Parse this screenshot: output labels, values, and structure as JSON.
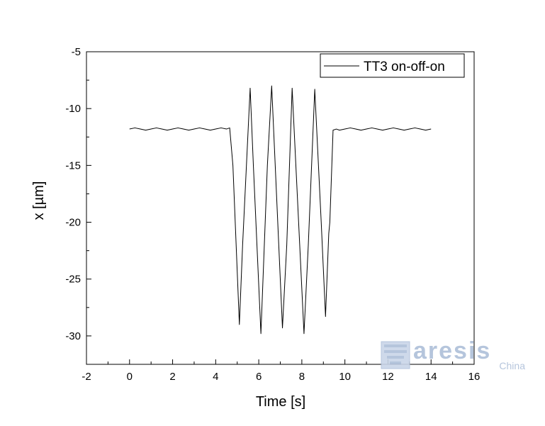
{
  "chart_data": {
    "type": "line",
    "xlabel": "Time [s]",
    "ylabel": "x [µm]",
    "xlim": [
      -2,
      16
    ],
    "ylim": [
      -32.5,
      -5
    ],
    "xticks": [
      -2,
      0,
      2,
      4,
      6,
      8,
      10,
      12,
      14,
      16
    ],
    "yticks": [
      -30,
      -25,
      -20,
      -15,
      -10,
      -5
    ],
    "xtick_labels": [
      "-2",
      "0",
      "2",
      "4",
      "6",
      "8",
      "10",
      "12",
      "14",
      "16"
    ],
    "ytick_labels": [
      "-30",
      "-25",
      "-20",
      "-15",
      "-10",
      "-5"
    ],
    "grid": false,
    "legend_position": "top-right",
    "series": [
      {
        "name": "TT3 on-off-on",
        "color": "#000000",
        "x": [
          0.0,
          0.25,
          0.5,
          0.75,
          1.0,
          1.25,
          1.5,
          1.75,
          2.0,
          2.25,
          2.5,
          2.75,
          3.0,
          3.25,
          3.5,
          3.75,
          4.0,
          4.25,
          4.5,
          4.65,
          4.8,
          5.1,
          5.25,
          5.6,
          5.75,
          6.1,
          6.4,
          6.6,
          7.1,
          7.3,
          7.55,
          8.1,
          8.3,
          8.6,
          8.9,
          9.1,
          9.25,
          9.3,
          9.45,
          9.6,
          9.75,
          10.0,
          10.25,
          10.5,
          10.75,
          11.0,
          11.25,
          11.5,
          11.75,
          12.0,
          12.25,
          12.5,
          12.75,
          13.0,
          13.25,
          13.5,
          13.75,
          14.0
        ],
        "y": [
          -11.8,
          -11.7,
          -11.8,
          -11.9,
          -11.8,
          -11.7,
          -11.8,
          -11.9,
          -11.8,
          -11.7,
          -11.8,
          -11.9,
          -11.8,
          -11.7,
          -11.8,
          -11.9,
          -11.8,
          -11.7,
          -11.8,
          -11.7,
          -15.0,
          -29.0,
          -22.0,
          -8.2,
          -15.0,
          -29.8,
          -15.0,
          -8.0,
          -29.3,
          -22.0,
          -8.2,
          -29.8,
          -22.0,
          -8.3,
          -20.0,
          -28.3,
          -21.0,
          -20.0,
          -11.9,
          -11.8,
          -11.9,
          -11.8,
          -11.7,
          -11.8,
          -11.9,
          -11.8,
          -11.7,
          -11.8,
          -11.9,
          -11.8,
          -11.7,
          -11.8,
          -11.9,
          -11.8,
          -11.7,
          -11.8,
          -11.9,
          -11.8
        ]
      }
    ]
  },
  "watermark": {
    "brand": "aresis",
    "sub": "China",
    "color": "#aebfd9"
  }
}
